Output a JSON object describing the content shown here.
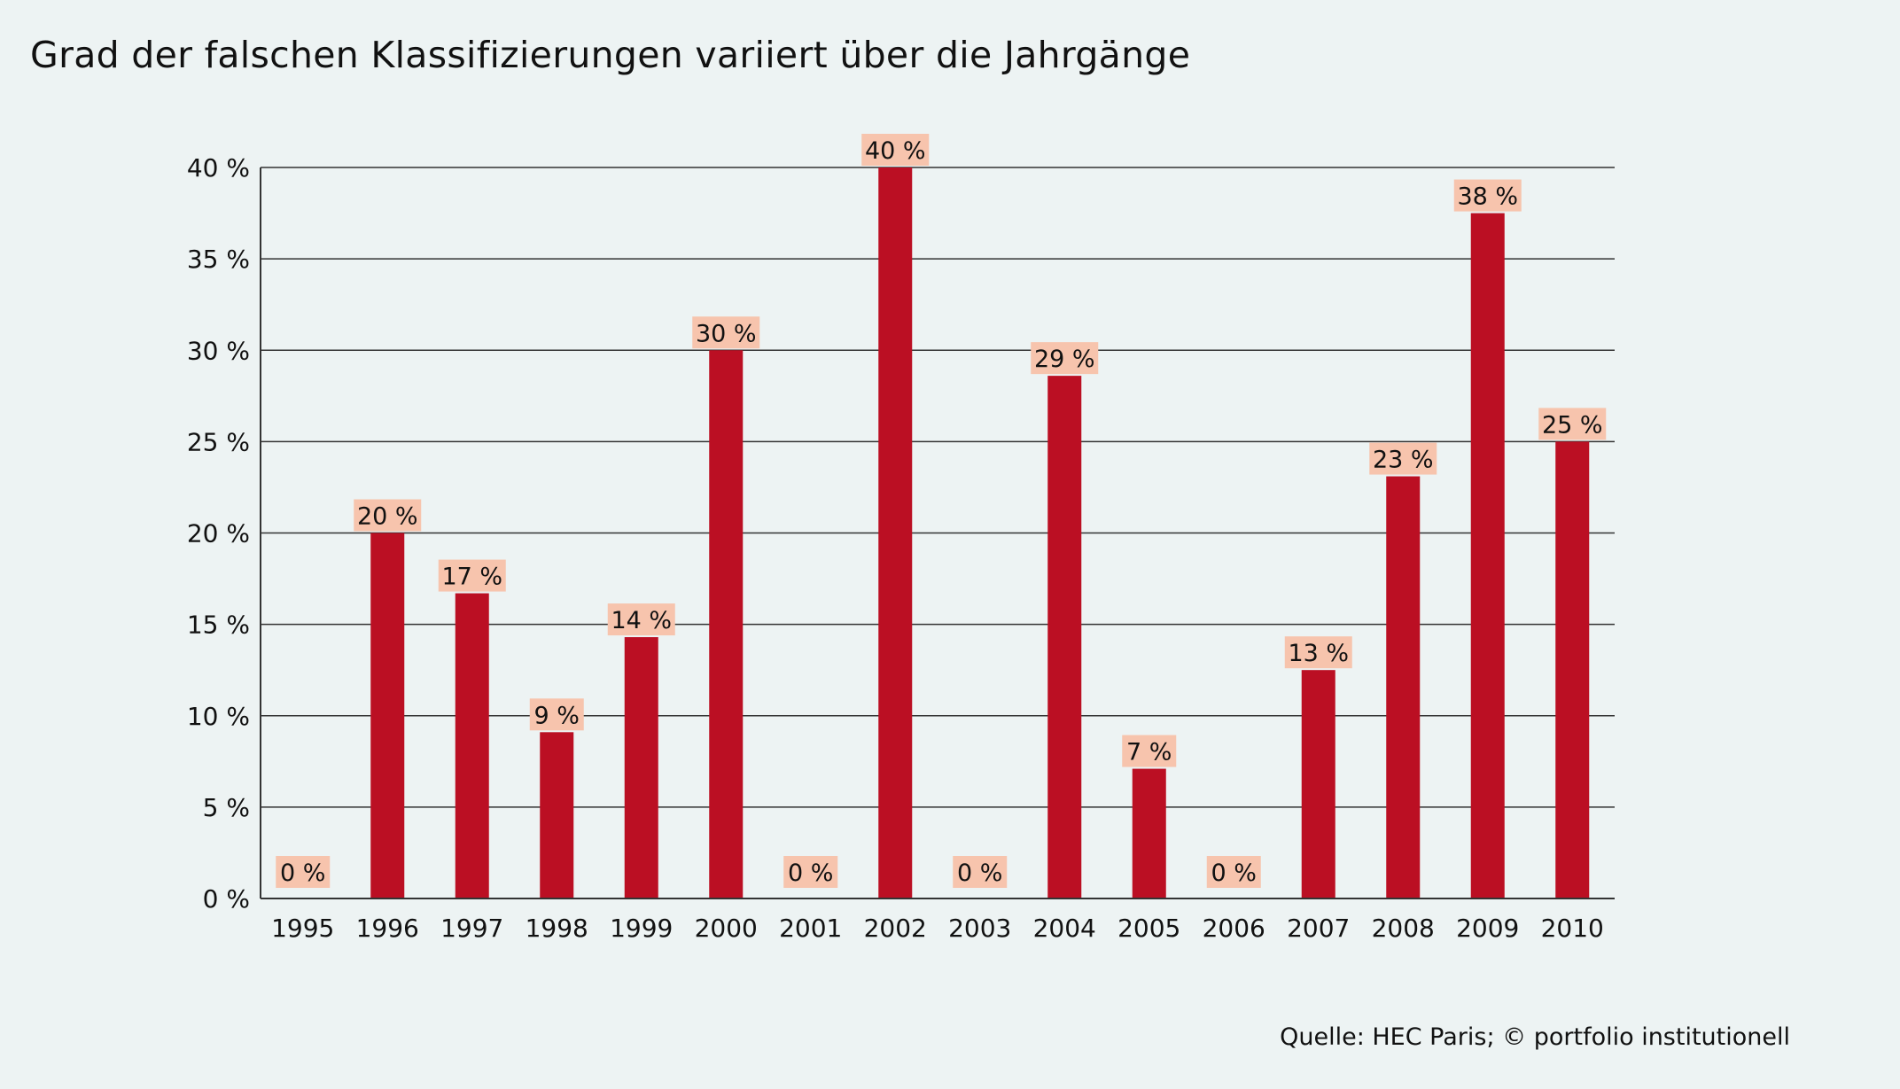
{
  "title": "Grad der falschen Klassifizierungen variiert über die Jahrgänge",
  "source": "Quelle: HEC Paris; © portfolio institutionell",
  "colors": {
    "background": "#edf3f3",
    "bar": "#bb0f23",
    "label_box": "#f7c4ad",
    "gridline": "#333333",
    "text": "#111111"
  },
  "chart_data": {
    "type": "bar",
    "title": "Grad der falschen Klassifizierungen variiert über die Jahrgänge",
    "xlabel": "",
    "ylabel": "",
    "ylim": [
      0,
      40
    ],
    "grid": true,
    "categories": [
      "1995",
      "1996",
      "1997",
      "1998",
      "1999",
      "2000",
      "2001",
      "2002",
      "2003",
      "2004",
      "2005",
      "2006",
      "2007",
      "2008",
      "2009",
      "2010"
    ],
    "values": [
      0,
      20,
      16.7,
      9.1,
      14.3,
      30,
      0,
      40,
      0,
      28.6,
      7.1,
      0,
      12.5,
      23.1,
      37.5,
      25
    ],
    "data_labels": [
      "0 %",
      "20 %",
      "17 %",
      "9 %",
      "14 %",
      "30 %",
      "0 %",
      "40 %",
      "0 %",
      "29 %",
      "7 %",
      "0 %",
      "13 %",
      "23 %",
      "38 %",
      "25 %"
    ],
    "y_ticks": [
      0,
      5,
      10,
      15,
      20,
      25,
      30,
      35,
      40
    ],
    "y_tick_labels": [
      "0 %",
      "5 %",
      "10 %",
      "15 %",
      "20 %",
      "25 %",
      "30 %",
      "35 %",
      "40 %"
    ]
  }
}
